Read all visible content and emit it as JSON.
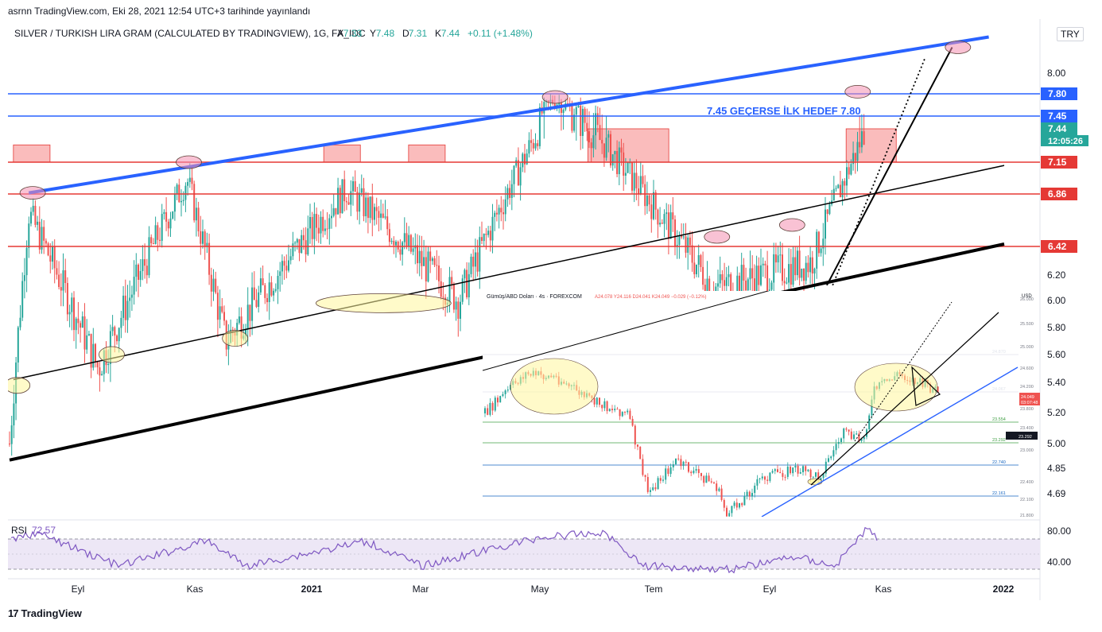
{
  "page": {
    "publish_line": "asrnn TradingView.com, Eki 28, 2021 12:54 UTC+3 tarihinde yayınlandı",
    "brand": "TradingView",
    "currency_button": "TRY"
  },
  "colors": {
    "up": "#26a69a",
    "down": "#ef5350",
    "blue_line": "#2962ff",
    "red_line": "#e53935",
    "black": "#000000",
    "rsi": "#7e57c2",
    "rsi_band": "#ede7f6",
    "zone": "#f8a5a5",
    "ellipse_pink": "#f48fb1",
    "ellipse_yellow": "#fff59d"
  },
  "chart_data": [
    {
      "type": "candlestick",
      "header": {
        "symbol": "SILVER / TURKISH LIRA GRAM (CALCULATED BY TRADINGVIEW), 1G, FX_IDC",
        "o_label": "A",
        "o": "7.33",
        "h_label": "Y",
        "h": "7.48",
        "l_label": "D",
        "l": "7.31",
        "c_label": "K",
        "c": "7.44",
        "change": "+0.11 (+1.48%)"
      },
      "x_ticks": [
        "Eyl",
        "Kas",
        "2021",
        "Mar",
        "May",
        "Tem",
        "Eyl",
        "Kas",
        "2022"
      ],
      "y_ticks": [
        "8.00",
        "6.20",
        "6.00",
        "5.80",
        "5.60",
        "5.40",
        "5.20",
        "5.00",
        "4.85",
        "4.69"
      ],
      "ylim": [
        4.6,
        8.4
      ],
      "y_axis_labels": [
        {
          "text": "7.80",
          "color": "blue"
        },
        {
          "text": "7.45",
          "color": "blue"
        },
        {
          "text": "7.44",
          "color": "green"
        },
        {
          "text": "12:05:26",
          "color": "green"
        },
        {
          "text": "7.15",
          "color": "red"
        },
        {
          "text": "6.86",
          "color": "red"
        },
        {
          "text": "6.42",
          "color": "red"
        }
      ],
      "horizontal_levels": [
        7.8,
        7.45,
        7.15,
        6.86,
        6.42
      ],
      "annotation": "7.45 GEÇERSE İLK HEDEF 7.80",
      "key_points": [
        {
          "date": "2020-08-10",
          "close": 5.0
        },
        {
          "date": "2020-08-20",
          "close": 6.7
        },
        {
          "date": "2020-09-25",
          "close": 5.5
        },
        {
          "date": "2020-11-10",
          "close": 7.0
        },
        {
          "date": "2020-11-30",
          "close": 5.7
        },
        {
          "date": "2021-02-01",
          "close": 6.9
        },
        {
          "date": "2021-03-31",
          "close": 6.0
        },
        {
          "date": "2021-05-19",
          "close": 7.7
        },
        {
          "date": "2021-06-15",
          "close": 7.3
        },
        {
          "date": "2021-08-10",
          "close": 6.1
        },
        {
          "date": "2021-09-30",
          "close": 6.3
        },
        {
          "date": "2021-10-28",
          "close": 7.44
        }
      ],
      "inset": {
        "header": "Gümüş/ABD Doları · 4s · FOREXCOM",
        "ohlc": "A24.078 Y24.116 D24.041 K24.049 −0.029 (−0.12%)",
        "currency": "USD",
        "y_ticks": [
          "26.000",
          "25.500",
          "25.000",
          "24.600",
          "24.200",
          "23.800",
          "23.400",
          "23.000",
          "22.400",
          "22.100",
          "21.800"
        ],
        "levels": [
          "24.870",
          "24.067",
          "23.554",
          "23.292",
          "22.740",
          "22.161"
        ],
        "price_labels": [
          "24.049",
          "03:07:48",
          "23.292"
        ]
      },
      "rsi": {
        "label": "RSI",
        "value": "72.57",
        "y_ticks": [
          "80.00",
          "40.00"
        ]
      }
    }
  ]
}
